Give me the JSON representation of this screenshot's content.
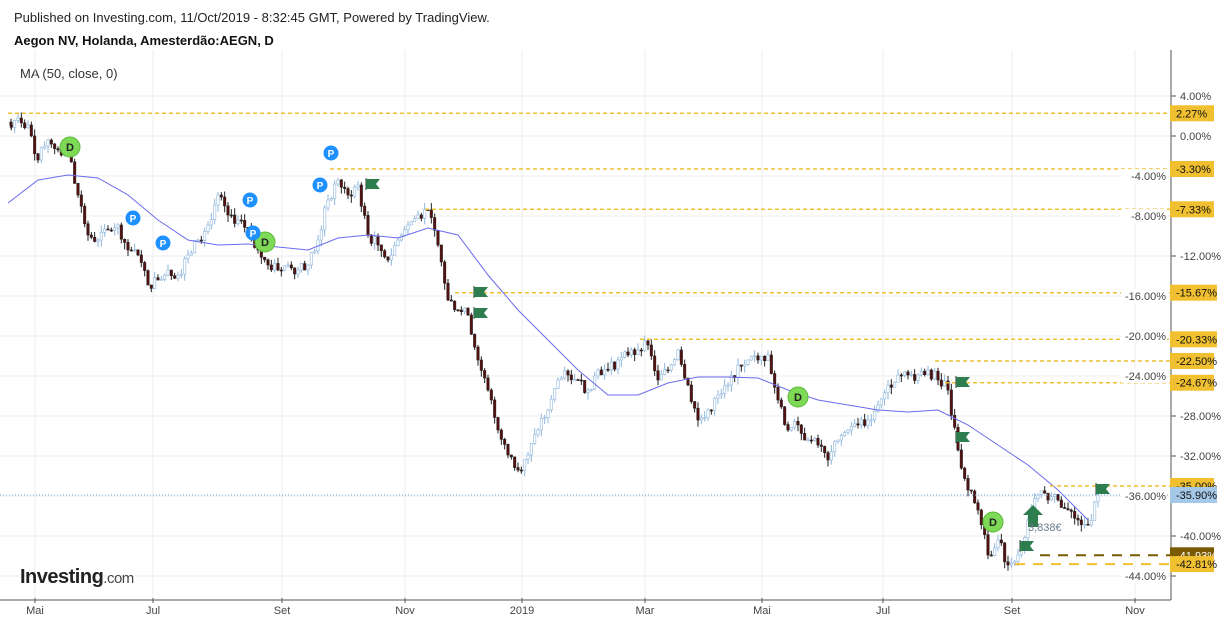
{
  "header": {
    "published": "Published on Investing.com, 11/Oct/2019 - 8:32:45 GMT, Powered by TradingView.",
    "symbol": "Aegon NV, Holanda, Amesterdão:AEGN, D"
  },
  "indicator": "MA (50, close, 0)",
  "logo": {
    "main": "Investing",
    "suffix": ".com"
  },
  "colors": {
    "up": "#a9c8e6",
    "down": "#5a0d0d",
    "ma": "#6a6aee",
    "level": "#f0c030",
    "level_dark": "#7a5a00",
    "last": "#a6c8e8",
    "flag": "#2e7d4f",
    "d": "#7ed957",
    "p": "#1e90ff"
  },
  "chart_data": {
    "type": "candlestick",
    "yaxis": {
      "unit": "%",
      "ticks": [
        4,
        0,
        -4,
        -8,
        -12,
        -16,
        -20,
        -24,
        -28,
        -32,
        -36,
        -40,
        -44
      ],
      "tick_labels": [
        "4.00%",
        "0.00%",
        "-4.00%",
        "-8.00%",
        "-12.00%",
        "-16.00%",
        "-20.00%",
        "-24.00%",
        "-28.00%",
        "-32.00%",
        "-36.00%",
        "-40.00%",
        "-44.00%"
      ]
    },
    "xaxis": {
      "labels": [
        "Mai",
        "Jul",
        "Set",
        "Nov",
        "2019",
        "Mar",
        "Mai",
        "Jul",
        "Set",
        "Nov"
      ]
    },
    "closes": [
      1.1,
      1.8,
      1.1,
      -2.4,
      -0.4,
      -1.4,
      -1.4,
      -5.9,
      -9.9,
      -10.4,
      -9.4,
      -8.9,
      -11.4,
      -11.9,
      -14.9,
      -14.4,
      -13.4,
      -13.9,
      -11.9,
      -10.4,
      -8.9,
      -5.9,
      -7.9,
      -8.4,
      -9.4,
      -11.4,
      -12.9,
      -13.4,
      -12.9,
      -13.4,
      -12.9,
      -10.4,
      -6.4,
      -4.4,
      -5.9,
      -4.9,
      -9.9,
      -10.9,
      -12.4,
      -10.4,
      -8.9,
      -7.9,
      -7.4,
      -10.9,
      -16.4,
      -17.4,
      -17.9,
      -22.4,
      -25.4,
      -29.4,
      -31.9,
      -33.4,
      -31.9,
      -29.4,
      -27.4,
      -24.4,
      -23.9,
      -24.4,
      -25.4,
      -23.4,
      -23.4,
      -22.4,
      -21.9,
      -21.4,
      -20.9,
      -24.4,
      -23.4,
      -21.4,
      -24.9,
      -28.4,
      -27.4,
      -25.9,
      -24.9,
      -22.9,
      -22.4,
      -22.4,
      -21.9,
      -26.4,
      -29.4,
      -28.9,
      -30.4,
      -30.9,
      -32.4,
      -30.4,
      -29.4,
      -28.9,
      -28.4,
      -26.9,
      -24.9,
      -23.9,
      -23.9,
      -23.9,
      -23.4,
      -24.4,
      -25.4,
      -31.4,
      -35.4,
      -37.4,
      -41.9,
      -40.4,
      -42.9,
      -41.9,
      -38.4,
      -35.9,
      -36.4,
      -36.4,
      -37.4,
      -38.4,
      -38.9,
      -35.9
    ],
    "ma50": [
      -6.7,
      -4.4,
      -3.9,
      -4.2,
      -5.9,
      -8.4,
      -10.4,
      -10.9,
      -10.8,
      -11.1,
      -11.4,
      -10.2,
      -9.9,
      -10.2,
      -9.2,
      -9.9,
      -13.9,
      -17.4,
      -20.4,
      -23.4,
      -25.9,
      -25.9,
      -24.7,
      -24.1,
      -24.1,
      -24.2,
      -25.4,
      -26.4,
      -26.9,
      -27.4,
      -27.6,
      -27.4,
      -28.9,
      -30.9,
      -32.9,
      -35.4,
      -38.4
    ],
    "levels": [
      {
        "label": "2.27%",
        "value": 2.27
      },
      {
        "label": "-3.30%",
        "value": -3.3
      },
      {
        "label": "-7.33%",
        "value": -7.33
      },
      {
        "label": "-15.67%",
        "value": -15.67
      },
      {
        "label": "-20.33%",
        "value": -20.33
      },
      {
        "label": "-22.50%",
        "value": -22.5
      },
      {
        "label": "-24.67%",
        "value": -24.67
      },
      {
        "label": "-35.00%",
        "value": -35.0
      },
      {
        "label": "-41.93%",
        "value": -41.93
      },
      {
        "label": "-42.81%",
        "value": -42.81
      }
    ],
    "last": {
      "label": "-35.90%",
      "value": -35.9
    },
    "events": {
      "dividend": "D",
      "p": "P",
      "trade_label": "3,838€"
    }
  }
}
